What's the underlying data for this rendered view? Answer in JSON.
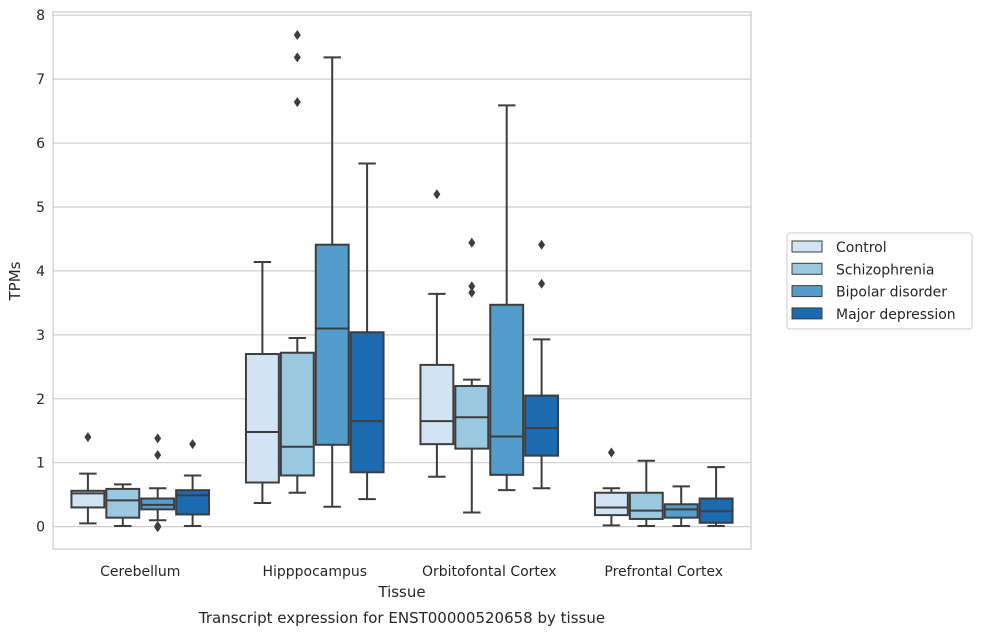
{
  "chart_data": {
    "type": "box",
    "title": "Transcript expression for ENST00000520658 by tissue",
    "xlabel": "Tissue",
    "ylabel": "TPMs",
    "ylim": [
      -0.35,
      8.05
    ],
    "yticks": [
      0,
      1,
      2,
      3,
      4,
      5,
      6,
      7,
      8
    ],
    "grid": "horizontal",
    "legend_position": "right",
    "categories": [
      "Cerebellum",
      "Hipppocampus",
      "Orbitofontal Cortex",
      "Prefrontal Cortex"
    ],
    "series": [
      {
        "name": "Control",
        "color": "#d2e3f3",
        "boxes": [
          {
            "whislo": 0.05,
            "q1": 0.3,
            "med": 0.52,
            "q3": 0.56,
            "whishi": 0.83,
            "fliers": [
              1.4
            ]
          },
          {
            "whislo": 0.37,
            "q1": 0.69,
            "med": 1.48,
            "q3": 2.7,
            "whishi": 4.14,
            "fliers": []
          },
          {
            "whislo": 0.78,
            "q1": 1.29,
            "med": 1.65,
            "q3": 2.53,
            "whishi": 3.64,
            "fliers": [
              5.2
            ]
          },
          {
            "whislo": 0.02,
            "q1": 0.18,
            "med": 0.3,
            "q3": 0.53,
            "whishi": 0.6,
            "fliers": [
              1.16
            ]
          }
        ]
      },
      {
        "name": "Schizophrenia",
        "color": "#9ac8e0",
        "boxes": [
          {
            "whislo": 0.01,
            "q1": 0.14,
            "med": 0.41,
            "q3": 0.59,
            "whishi": 0.66,
            "fliers": []
          },
          {
            "whislo": 0.53,
            "q1": 0.8,
            "med": 1.25,
            "q3": 2.72,
            "whishi": 2.95,
            "fliers": [
              6.64,
              7.34,
              7.69
            ]
          },
          {
            "whislo": 0.22,
            "q1": 1.22,
            "med": 1.71,
            "q3": 2.2,
            "whishi": 2.3,
            "fliers": [
              3.66,
              3.76,
              4.44
            ]
          },
          {
            "whislo": 0.01,
            "q1": 0.12,
            "med": 0.25,
            "q3": 0.53,
            "whishi": 1.03,
            "fliers": []
          }
        ]
      },
      {
        "name": "Bipolar disorder",
        "color": "#529dcc",
        "boxes": [
          {
            "whislo": 0.1,
            "q1": 0.27,
            "med": 0.34,
            "q3": 0.44,
            "whishi": 0.6,
            "fliers": [
              -0.01,
              0.01,
              1.12,
              1.38
            ]
          },
          {
            "whislo": 0.31,
            "q1": 1.28,
            "med": 3.1,
            "q3": 4.41,
            "whishi": 7.34,
            "fliers": []
          },
          {
            "whislo": 0.57,
            "q1": 0.81,
            "med": 1.41,
            "q3": 3.47,
            "whishi": 6.59,
            "fliers": []
          },
          {
            "whislo": 0.01,
            "q1": 0.14,
            "med": 0.27,
            "q3": 0.35,
            "whishi": 0.63,
            "fliers": []
          }
        ]
      },
      {
        "name": "Major depression",
        "color": "#1c6aaf",
        "boxes": [
          {
            "whislo": 0.01,
            "q1": 0.19,
            "med": 0.49,
            "q3": 0.57,
            "whishi": 0.8,
            "fliers": [
              1.29
            ]
          },
          {
            "whislo": 0.43,
            "q1": 0.85,
            "med": 1.65,
            "q3": 3.04,
            "whishi": 5.68,
            "fliers": []
          },
          {
            "whislo": 0.6,
            "q1": 1.11,
            "med": 1.54,
            "q3": 2.05,
            "whishi": 2.93,
            "fliers": [
              3.8,
              4.41
            ]
          },
          {
            "whislo": 0.01,
            "q1": 0.06,
            "med": 0.24,
            "q3": 0.44,
            "whishi": 0.93,
            "fliers": []
          }
        ]
      }
    ]
  }
}
